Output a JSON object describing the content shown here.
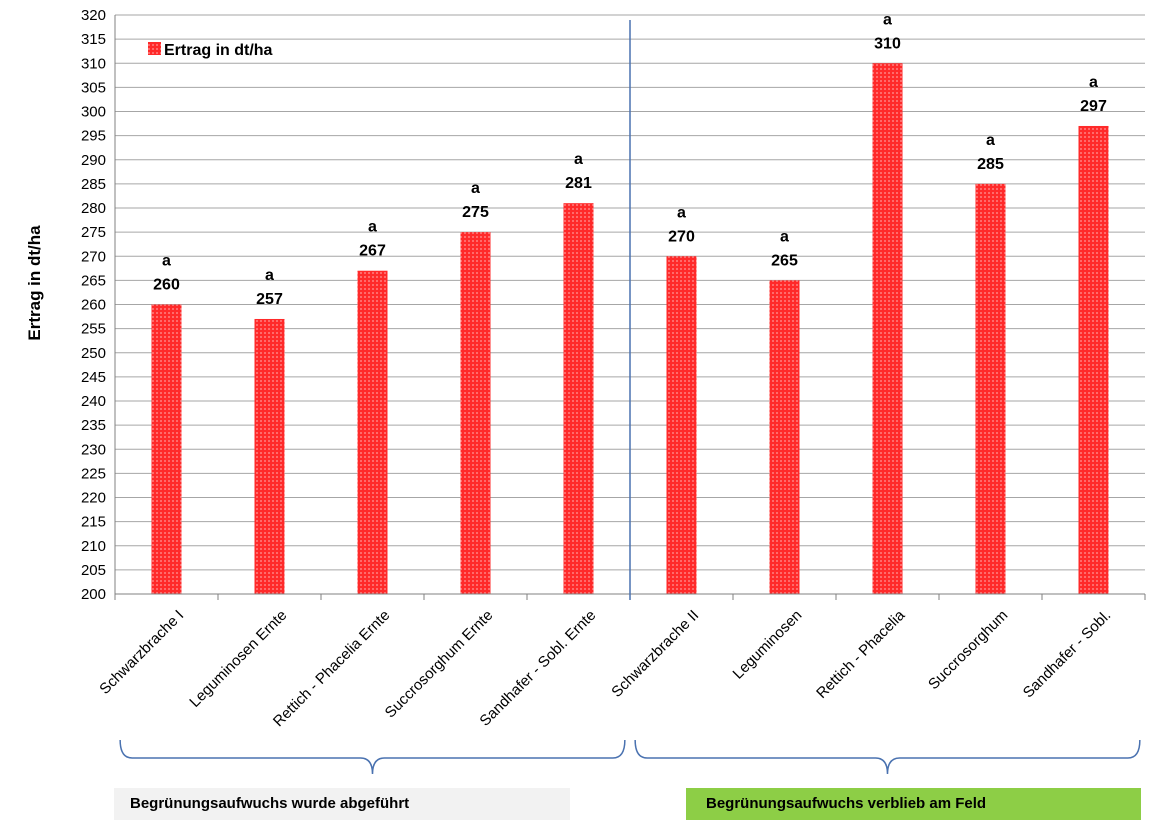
{
  "chart_data": {
    "type": "bar",
    "ylabel": "Ertrag in dt/ha",
    "ylim": [
      200,
      320
    ],
    "ytick_step": 5,
    "grid": true,
    "legend_position": "top-left",
    "categories": [
      "Schwarzbrache I",
      "Leguminosen Ernte",
      "Rettich - Phacelia Ernte",
      "Succrosorghum Ernte",
      "Sandhafer - Sobl. Ernte",
      "Schwarzbrache II",
      "Leguminosen",
      "Rettich - Phacelia",
      "Succrosorghum",
      "Sandhafer - Sobl."
    ],
    "series": [
      {
        "name": "Ertrag in dt/ha",
        "color": "#ff2020",
        "values": [
          260,
          257,
          267,
          275,
          281,
          270,
          265,
          310,
          285,
          297
        ],
        "labels": [
          "260",
          "257",
          "267",
          "275",
          "281",
          "270",
          "265",
          "310",
          "285",
          "297"
        ]
      }
    ],
    "significance_letters": [
      "a",
      "a",
      "a",
      "a",
      "a",
      "a",
      "a",
      "a",
      "a",
      "a"
    ],
    "groups": [
      {
        "label": "Begrünungsaufwuchs wurde abgeführt",
        "start": 0,
        "end": 4,
        "background": "#f2f2f2"
      },
      {
        "label": "Begrünungsaufwuchs verblieb am Feld",
        "start": 5,
        "end": 9,
        "background": "#8dce46"
      }
    ],
    "colors": {
      "divider": "#4a72b0",
      "bracket": "#4a72b0",
      "grid": "#a6a6a6"
    }
  }
}
